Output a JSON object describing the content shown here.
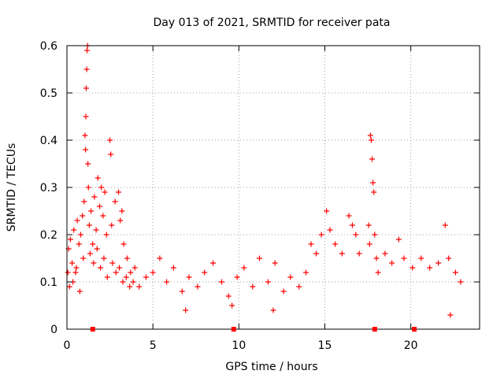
{
  "chart_data": {
    "type": "scatter",
    "title": "Day 013 of 2021, SRMTID for receiver pata",
    "xlabel": "GPS time / hours",
    "ylabel": "SRMTID / TECUs",
    "xlim": [
      0,
      24
    ],
    "ylim": [
      0,
      0.6
    ],
    "x_ticks": [
      0,
      5,
      10,
      15,
      20
    ],
    "x_tick_labels": [
      "0",
      "5",
      "10",
      "15",
      "20"
    ],
    "y_ticks": [
      0,
      0.1,
      0.2,
      0.3,
      0.4,
      0.5,
      0.6
    ],
    "y_tick_labels": [
      "0",
      "0.1",
      "0.2",
      "0.3",
      "0.4",
      "0.5",
      "0.6"
    ],
    "grid": true,
    "marker": "+",
    "color": "#ff0000",
    "baseline_markers_x": [
      1.5,
      9.7,
      17.9,
      20.2
    ],
    "series": [
      {
        "name": "SRMTID",
        "points": [
          [
            0.1,
            0.17
          ],
          [
            0.2,
            0.19
          ],
          [
            0.3,
            0.14
          ],
          [
            0.4,
            0.21
          ],
          [
            0.5,
            0.12
          ],
          [
            0.6,
            0.23
          ],
          [
            0.7,
            0.18
          ],
          [
            0.8,
            0.2
          ],
          [
            0.9,
            0.24
          ],
          [
            1.0,
            0.27
          ],
          [
            1.05,
            0.41
          ],
          [
            1.08,
            0.38
          ],
          [
            1.1,
            0.45
          ],
          [
            1.12,
            0.51
          ],
          [
            1.15,
            0.55
          ],
          [
            1.17,
            0.59
          ],
          [
            1.2,
            0.6
          ],
          [
            1.22,
            0.35
          ],
          [
            1.25,
            0.3
          ],
          [
            1.3,
            0.22
          ],
          [
            1.4,
            0.25
          ],
          [
            1.5,
            0.18
          ],
          [
            1.6,
            0.28
          ],
          [
            1.7,
            0.21
          ],
          [
            1.8,
            0.32
          ],
          [
            1.9,
            0.26
          ],
          [
            2.0,
            0.3
          ],
          [
            2.1,
            0.24
          ],
          [
            2.2,
            0.29
          ],
          [
            2.3,
            0.2
          ],
          [
            2.5,
            0.4
          ],
          [
            2.55,
            0.37
          ],
          [
            2.6,
            0.22
          ],
          [
            2.8,
            0.27
          ],
          [
            3.0,
            0.29
          ],
          [
            3.1,
            0.23
          ],
          [
            3.2,
            0.25
          ],
          [
            3.3,
            0.18
          ],
          [
            3.5,
            0.15
          ],
          [
            3.7,
            0.12
          ],
          [
            0.05,
            0.12
          ],
          [
            0.15,
            0.09
          ],
          [
            0.35,
            0.1
          ],
          [
            0.55,
            0.13
          ],
          [
            0.75,
            0.08
          ],
          [
            0.95,
            0.15
          ],
          [
            1.35,
            0.16
          ],
          [
            1.55,
            0.14
          ],
          [
            1.75,
            0.17
          ],
          [
            1.95,
            0.13
          ],
          [
            2.15,
            0.15
          ],
          [
            2.35,
            0.11
          ],
          [
            2.65,
            0.14
          ],
          [
            2.85,
            0.12
          ],
          [
            3.05,
            0.13
          ],
          [
            3.25,
            0.1
          ],
          [
            3.45,
            0.11
          ],
          [
            3.65,
            0.09
          ],
          [
            3.85,
            0.1
          ],
          [
            3.95,
            0.13
          ],
          [
            17.65,
            0.41
          ],
          [
            17.7,
            0.4
          ],
          [
            17.75,
            0.36
          ],
          [
            17.8,
            0.31
          ],
          [
            17.85,
            0.29
          ],
          [
            17.55,
            0.22
          ],
          [
            17.6,
            0.18
          ],
          [
            17.9,
            0.2
          ],
          [
            18.0,
            0.15
          ],
          [
            18.1,
            0.12
          ],
          [
            22.0,
            0.22
          ],
          [
            14.2,
            0.18
          ],
          [
            14.5,
            0.16
          ],
          [
            14.8,
            0.2
          ],
          [
            15.1,
            0.25
          ],
          [
            15.3,
            0.21
          ],
          [
            15.6,
            0.18
          ],
          [
            16.0,
            0.16
          ],
          [
            16.4,
            0.24
          ],
          [
            16.6,
            0.22
          ],
          [
            16.8,
            0.2
          ],
          [
            17.0,
            0.16
          ],
          [
            18.5,
            0.16
          ],
          [
            18.9,
            0.14
          ],
          [
            19.3,
            0.19
          ],
          [
            19.6,
            0.15
          ],
          [
            20.1,
            0.13
          ],
          [
            20.6,
            0.15
          ],
          [
            21.1,
            0.13
          ],
          [
            21.6,
            0.14
          ],
          [
            22.2,
            0.15
          ],
          [
            22.6,
            0.12
          ],
          [
            22.9,
            0.1
          ],
          [
            4.2,
            0.09
          ],
          [
            4.6,
            0.11
          ],
          [
            5.0,
            0.12
          ],
          [
            5.4,
            0.15
          ],
          [
            5.8,
            0.1
          ],
          [
            6.2,
            0.13
          ],
          [
            6.7,
            0.08
          ],
          [
            7.1,
            0.11
          ],
          [
            7.6,
            0.09
          ],
          [
            8.0,
            0.12
          ],
          [
            8.5,
            0.14
          ],
          [
            9.0,
            0.1
          ],
          [
            9.4,
            0.07
          ],
          [
            9.9,
            0.11
          ],
          [
            10.3,
            0.13
          ],
          [
            10.8,
            0.09
          ],
          [
            11.2,
            0.15
          ],
          [
            11.7,
            0.1
          ],
          [
            12.1,
            0.14
          ],
          [
            12.6,
            0.08
          ],
          [
            13.0,
            0.11
          ],
          [
            13.5,
            0.09
          ],
          [
            13.9,
            0.12
          ],
          [
            12.0,
            0.04
          ],
          [
            9.6,
            0.05
          ],
          [
            6.9,
            0.04
          ],
          [
            22.3,
            0.03
          ]
        ]
      }
    ]
  }
}
